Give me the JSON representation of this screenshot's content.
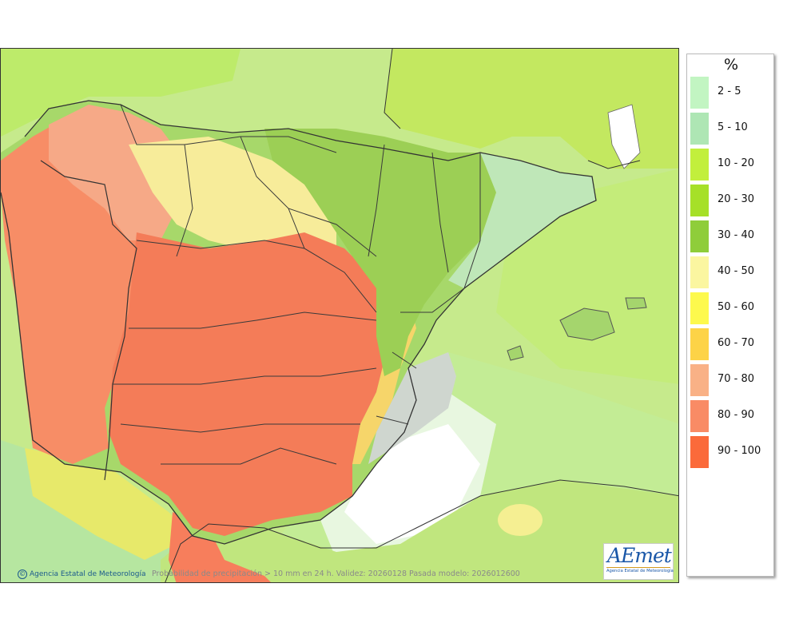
{
  "legend": {
    "title": "%",
    "items": [
      {
        "label": "2 - 5",
        "color": "#c2f5c2"
      },
      {
        "label": "5 - 10",
        "color": "#aee6b4"
      },
      {
        "label": "10 - 20",
        "color": "#c2ef3c"
      },
      {
        "label": "20 - 30",
        "color": "#a6e028"
      },
      {
        "label": "30 - 40",
        "color": "#8fcd3a"
      },
      {
        "label": "40 - 50",
        "color": "#fbf6a0"
      },
      {
        "label": "50 - 60",
        "color": "#fdf94d"
      },
      {
        "label": "60 - 70",
        "color": "#fdd347"
      },
      {
        "label": "70 - 80",
        "color": "#f9b186"
      },
      {
        "label": "80 - 90",
        "color": "#f98b65"
      },
      {
        "label": "90 - 100",
        "color": "#fb6a3a"
      }
    ]
  },
  "footer": {
    "credit": "Agencia Estatal de Meteorología",
    "caption": "Probabilidad de precipitación > 10 mm en 24 h. Validez: 20260128 Pasada modelo: 2026012600"
  },
  "logo": {
    "wordmark": "AEmet",
    "subtitle": "Agencia Estatal de Meteorología"
  }
}
